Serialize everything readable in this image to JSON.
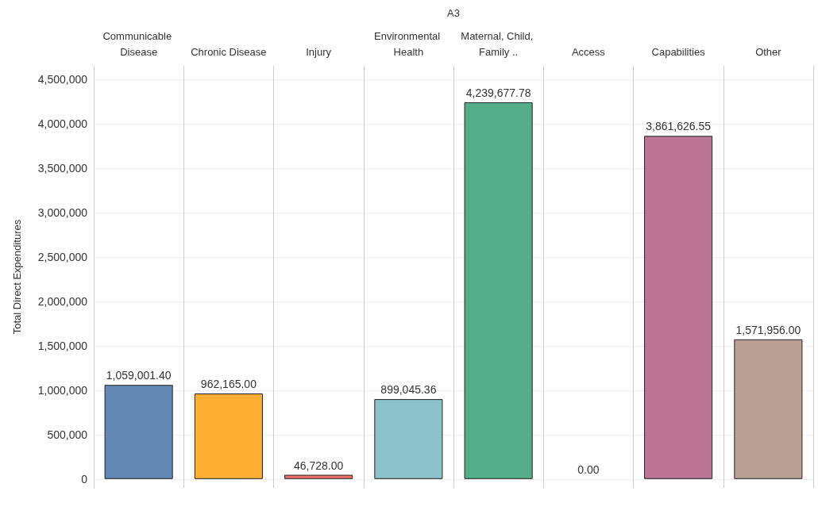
{
  "chart_data": {
    "type": "bar",
    "title": "A3",
    "ylabel": "Total Direct Expenditures",
    "categories": [
      "Communicable Disease",
      "Chronic Disease",
      "Injury",
      "Environmental Health",
      "Maternal, Child, Family ..",
      "Access",
      "Capabilities",
      "Other"
    ],
    "values": [
      1059001.4,
      962165.0,
      46728.0,
      899045.36,
      4239677.78,
      0.0,
      3861626.55,
      1571956.0
    ],
    "colors": [
      "#6388b4",
      "#ffae34",
      "#ef6f6a",
      "#8cc2ca",
      "#55ad89",
      null,
      "#bb7693",
      "#baa094"
    ],
    "value_labels": [
      "1,059,001.40",
      "962,165.00",
      "46,728.00",
      "899,045.36",
      "4,239,677.78",
      "0.00",
      "3,861,626.55",
      "1,571,956.00"
    ],
    "ylim": [
      -100000,
      4650000
    ],
    "yticks": [
      0,
      {
        "value": 500000,
        "label": "500,000"
      },
      {
        "value": 1000000,
        "label": "1,000,000"
      },
      {
        "value": 1500000,
        "label": "1,500,000"
      },
      {
        "value": 2000000,
        "label": "2,000,000"
      },
      {
        "value": 2500000,
        "label": "2,500,000"
      },
      {
        "value": 3000000,
        "label": "3,000,000"
      },
      {
        "value": 3500000,
        "label": "3,500,000"
      },
      {
        "value": 4000000,
        "label": "4,000,000"
      },
      {
        "value": 4500000,
        "label": "4,500,000"
      }
    ],
    "grid": "y"
  }
}
